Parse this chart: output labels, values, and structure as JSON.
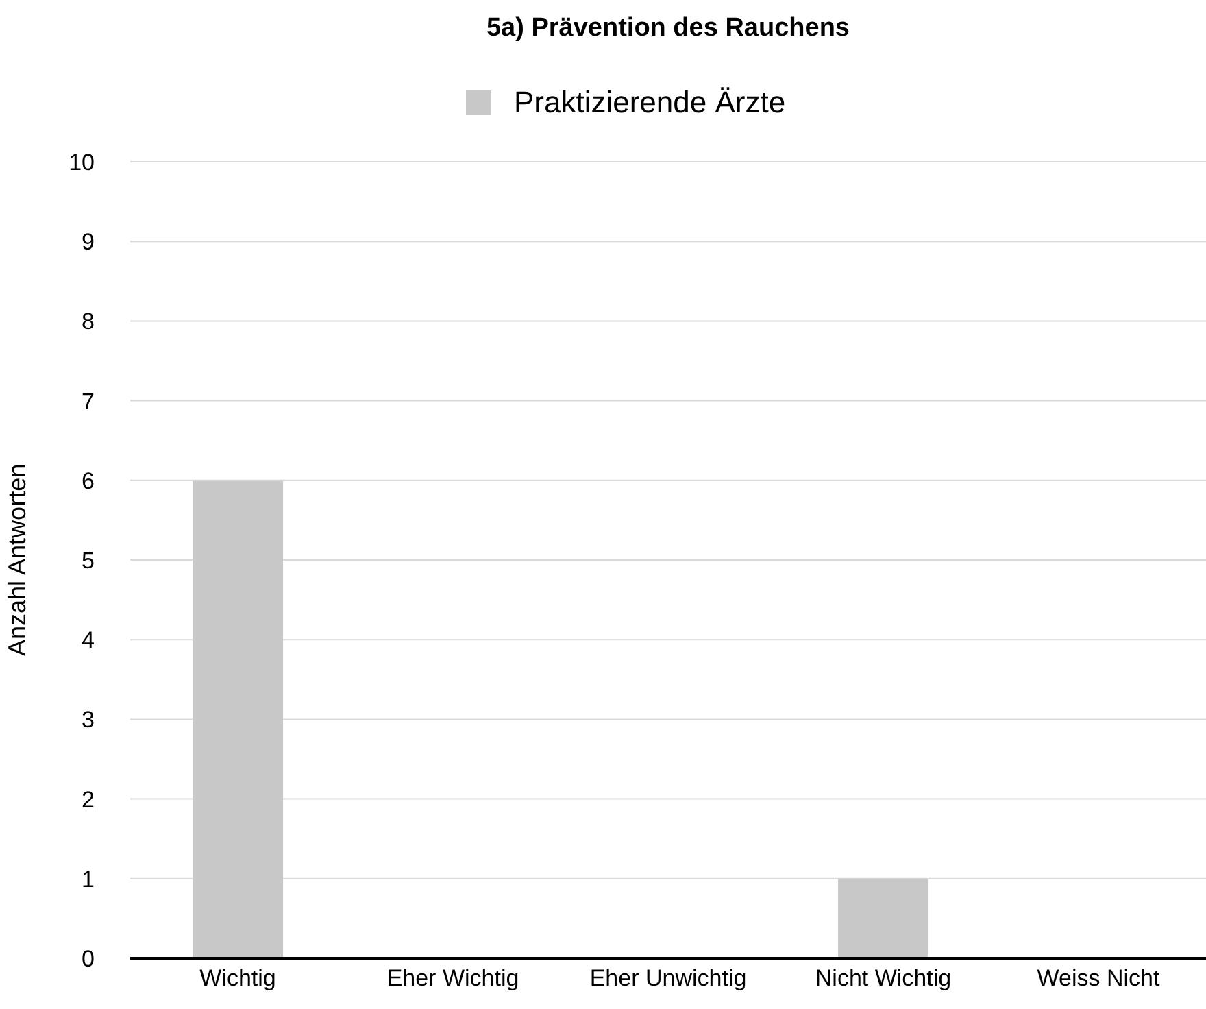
{
  "chart_data": {
    "type": "bar",
    "title": "5a) Prävention des Rauchens",
    "ylabel": "Anzahl  Antworten",
    "categories": [
      "Wichtig",
      "Eher Wichtig",
      "Eher Unwichtig",
      "Nicht Wichtig",
      "Weiss Nicht"
    ],
    "series": [
      {
        "name": "Praktizierende Ärzte",
        "color": "#c8c8c8",
        "values": [
          6,
          0,
          0,
          1,
          0
        ]
      }
    ],
    "ylim": [
      0,
      10
    ],
    "yticks": [
      0,
      1,
      2,
      3,
      4,
      5,
      6,
      7,
      8,
      9,
      10
    ],
    "grid": "y",
    "legend": "top"
  }
}
